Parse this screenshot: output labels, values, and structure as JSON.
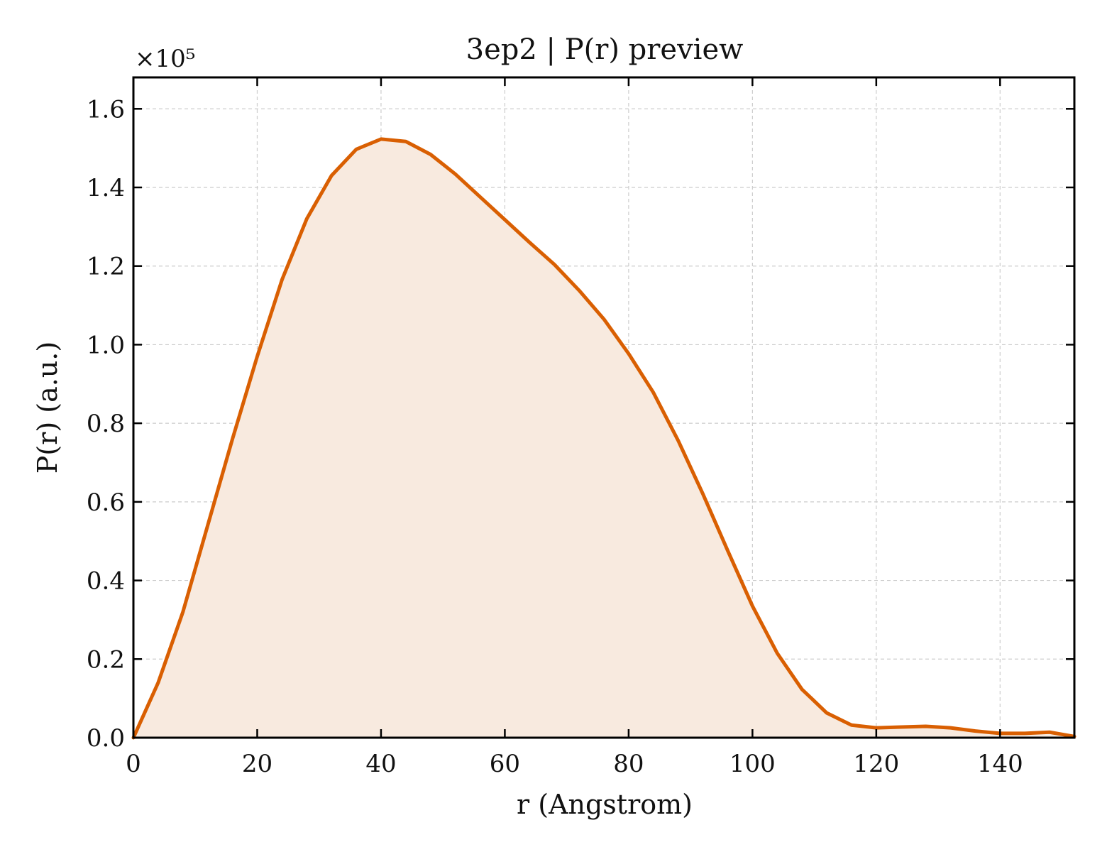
{
  "chart_data": {
    "type": "area",
    "title": "3ep2 | P(r) preview",
    "xlabel": "r (Angstrom)",
    "ylabel": "P(r) (a.u.)",
    "y_multiplier_label": "×10⁵",
    "y_multiplier": 100000,
    "xlim": [
      0,
      152
    ],
    "ylim": [
      0,
      1.68
    ],
    "xticks": [
      0,
      20,
      40,
      60,
      80,
      100,
      120,
      140
    ],
    "xtick_labels": [
      "0",
      "20",
      "40",
      "60",
      "80",
      "100",
      "120",
      "140"
    ],
    "yticks": [
      0,
      0.2,
      0.4,
      0.6,
      0.8,
      1.0,
      1.2,
      1.4,
      1.6
    ],
    "ytick_labels": [
      "0.0",
      "0.2",
      "0.4",
      "0.6",
      "0.8",
      "1.0",
      "1.2",
      "1.4",
      "1.6"
    ],
    "grid": true,
    "line_color": "#d95f02",
    "fill_color": "#f8eadf",
    "series": [
      {
        "x": [
          0,
          4,
          8,
          12,
          16,
          20,
          24,
          28,
          32,
          36,
          40,
          44,
          48,
          52,
          56,
          60,
          64,
          68,
          72,
          76,
          80,
          84,
          88,
          92,
          96,
          100,
          104,
          108,
          112,
          116,
          120,
          124,
          128,
          132,
          136,
          140,
          144,
          148,
          152
        ],
        "y": [
          0.0,
          0.14,
          0.32,
          0.54,
          0.76,
          0.97,
          1.165,
          1.32,
          1.43,
          1.497,
          1.523,
          1.517,
          1.484,
          1.434,
          1.376,
          1.318,
          1.26,
          1.204,
          1.138,
          1.065,
          0.977,
          0.878,
          0.756,
          0.62,
          0.476,
          0.335,
          0.215,
          0.123,
          0.063,
          0.032,
          0.025,
          0.027,
          0.029,
          0.025,
          0.017,
          0.011,
          0.011,
          0.014,
          0.003
        ]
      }
    ]
  }
}
